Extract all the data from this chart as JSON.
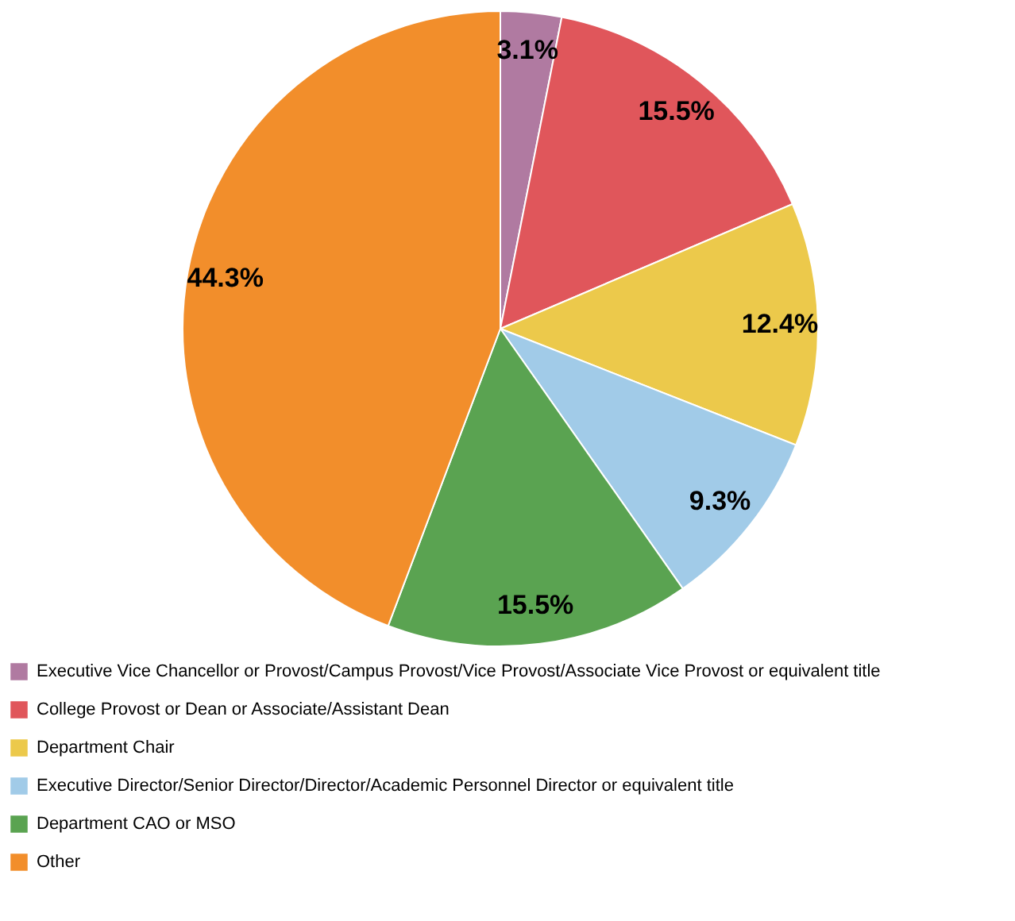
{
  "chart_data": {
    "type": "pie",
    "categories": [
      "Executive Vice Chancellor or Provost/Campus Provost/Vice Provost/Associate Vice Provost or equivalent title",
      "College Provost or Dean or Associate/Assistant Dean",
      "Department Chair",
      "Executive Director/Senior Director/Director/Academic Personnel Director or equivalent title",
      "Department CAO or MSO",
      "Other"
    ],
    "values": [
      3.1,
      15.5,
      12.4,
      9.3,
      15.5,
      44.3
    ],
    "colors": [
      "#b07aa1",
      "#e0565b",
      "#ecc94b",
      "#a1cbe8",
      "#5aa351",
      "#f28e2b"
    ],
    "value_labels": [
      "3.1%",
      "15.5%",
      "12.4%",
      "9.3%",
      "15.5%",
      "44.3%"
    ],
    "legend": "bottom"
  }
}
